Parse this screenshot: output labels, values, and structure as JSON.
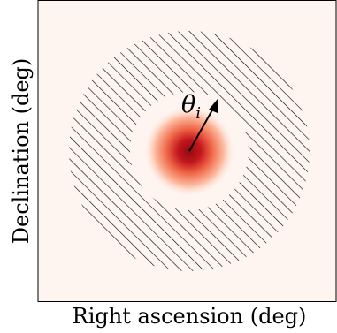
{
  "axes": {
    "xlabel": "Right ascension (deg)",
    "ylabel": "Declination (deg)"
  },
  "annotation": {
    "symbol": "θ",
    "subscript": "i"
  },
  "colors": {
    "background": "#fff5f0",
    "source_core": "#b30f17",
    "hatch": "#000000"
  }
}
